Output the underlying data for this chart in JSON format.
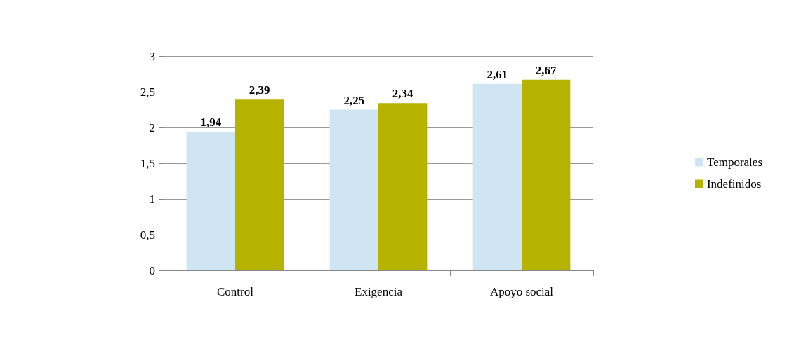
{
  "chart_data": {
    "type": "bar",
    "categories": [
      "Control",
      "Exigencia",
      "Apoyo social"
    ],
    "series": [
      {
        "name": "Temporales",
        "color": "#d0e5f3",
        "values": [
          1.94,
          2.25,
          2.61
        ],
        "value_labels": [
          "1,94",
          "2,25",
          "2,61"
        ]
      },
      {
        "name": "Indefinidos",
        "color": "#b5b200",
        "values": [
          2.39,
          2.34,
          2.67
        ],
        "value_labels": [
          "2,39",
          "2,34",
          "2,67"
        ]
      }
    ],
    "ylim": [
      0,
      3
    ],
    "yticks": [
      0,
      {
        "value": 0.5,
        "label": "0,5"
      },
      1,
      {
        "value": 1.5,
        "label": "1,5"
      },
      2,
      {
        "value": 2.5,
        "label": "2,5"
      },
      3
    ],
    "grid": "y",
    "legend": "right"
  }
}
